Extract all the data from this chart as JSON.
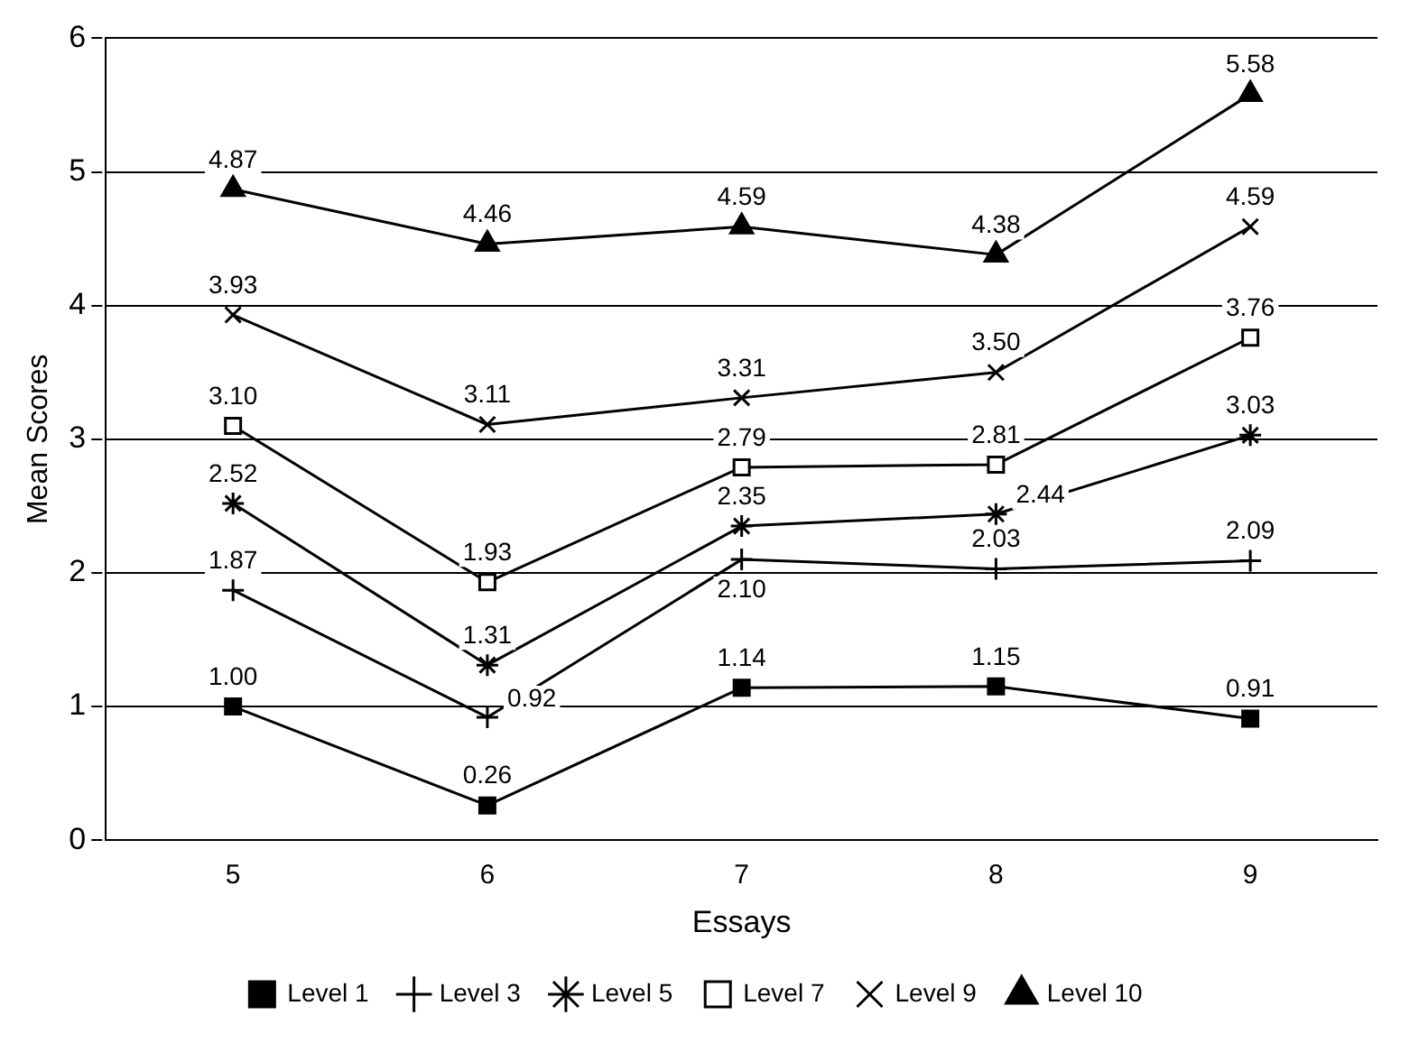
{
  "chart_data": {
    "type": "line",
    "xlabel": "Essays",
    "ylabel": "Mean Scores",
    "categories": [
      "5",
      "6",
      "7",
      "8",
      "9"
    ],
    "series": [
      {
        "name": "Level 1",
        "color": "#000000",
        "marker": "square",
        "values": [
          1.0,
          0.26,
          1.14,
          1.15,
          0.91
        ],
        "value_labels": [
          "1.00",
          "0.26",
          "1.14",
          "1.15",
          "0.91"
        ]
      },
      {
        "name": "Level 3",
        "color": "#000000",
        "marker": "cross",
        "values": [
          1.87,
          0.92,
          2.1,
          2.03,
          2.09
        ],
        "value_labels": [
          "1.87",
          "0.92",
          "2.10",
          "2.03",
          "2.09"
        ]
      },
      {
        "name": "Level 5",
        "color": "#000000",
        "marker": "cross",
        "values": [
          2.52,
          1.31,
          2.35,
          2.44,
          3.03
        ],
        "value_labels": [
          "2.52",
          "1.31",
          "2.35",
          "2.44",
          "3.03"
        ]
      },
      {
        "name": "Level 7",
        "color": "#000000",
        "marker": "square",
        "values": [
          3.1,
          1.93,
          2.79,
          2.81,
          3.76
        ],
        "value_labels": [
          "3.10",
          "1.93",
          "2.79",
          "2.81",
          "3.76"
        ]
      },
      {
        "name": "Level 9",
        "color": "#000000",
        "marker": "cross",
        "values": [
          3.93,
          3.11,
          3.31,
          3.5,
          4.59
        ],
        "value_labels": [
          "3.93",
          "3.11",
          "3.31",
          "3.50",
          "4.59"
        ]
      },
      {
        "name": "Level 10",
        "color": "#000000",
        "marker": "triangle",
        "values": [
          4.87,
          4.46,
          4.59,
          4.38,
          5.58
        ],
        "value_labels": [
          "4.87",
          "4.46",
          "4.59",
          "4.38",
          "5.58"
        ]
      }
    ],
    "ylim": [
      0,
      6
    ],
    "yticks": [
      0,
      1,
      2,
      3,
      4,
      5,
      6
    ],
    "grid": "y",
    "legend": "bottom",
    "line_style": "solid"
  }
}
